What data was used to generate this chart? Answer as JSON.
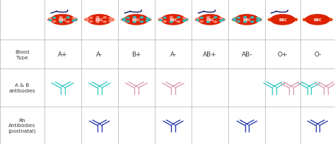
{
  "blood_types": [
    "A+",
    "A-",
    "B+",
    "A-",
    "AB+",
    "AB-",
    "O+",
    "O-"
  ],
  "col_starts": [
    0.0,
    0.132,
    0.242,
    0.352,
    0.462,
    0.572,
    0.682,
    0.792,
    0.896
  ],
  "col_ends": [
    0.132,
    0.242,
    0.352,
    0.462,
    0.572,
    0.682,
    0.792,
    0.896,
    1.0
  ],
  "row_bottoms": [
    0.0,
    0.26,
    0.52,
    0.72
  ],
  "row_tops": [
    0.26,
    0.52,
    0.72,
    1.0
  ],
  "cyan_color": "#30C8C0",
  "pink_color": "#D898A8",
  "blue_color": "#2233AA",
  "grid_color": "#BBBBBB",
  "bg_color": "#FFFFFF",
  "text_color": "#333333",
  "rbc_red": "#DD2200",
  "rbc_orange": "#E84400",
  "dot_colors_even": [
    "#FF8888",
    "#33BBBB"
  ],
  "dot_colors_odd": [
    "#FF8888",
    "#33BBBB"
  ],
  "ab_antibody_config": [
    [
      1,
      [
        [
          "cyan",
          0.0
        ]
      ]
    ],
    [
      2,
      [
        [
          "cyan",
          0.0
        ]
      ]
    ],
    [
      3,
      [
        [
          "pink",
          0.0
        ]
      ]
    ],
    [
      4,
      [
        [
          "pink",
          0.0
        ]
      ]
    ],
    [
      5,
      []
    ],
    [
      6,
      []
    ],
    [
      7,
      [
        [
          "cyan",
          -0.025
        ],
        [
          "pink",
          0.025
        ]
      ]
    ],
    [
      8,
      [
        [
          "cyan",
          -0.025
        ],
        [
          "pink",
          0.025
        ]
      ]
    ]
  ],
  "rh_antibody_cols": [
    2,
    4,
    6,
    8
  ],
  "rbc_antigen_types": [
    "AB",
    "A",
    "B",
    "AB",
    "AB",
    "B",
    "none",
    "none"
  ],
  "row_label_texts": [
    "Blood\nType",
    "A & B\nantibodies",
    "Rh\nAntibodies\n(postnatal)"
  ],
  "row_label_rows": [
    2,
    1,
    0
  ]
}
